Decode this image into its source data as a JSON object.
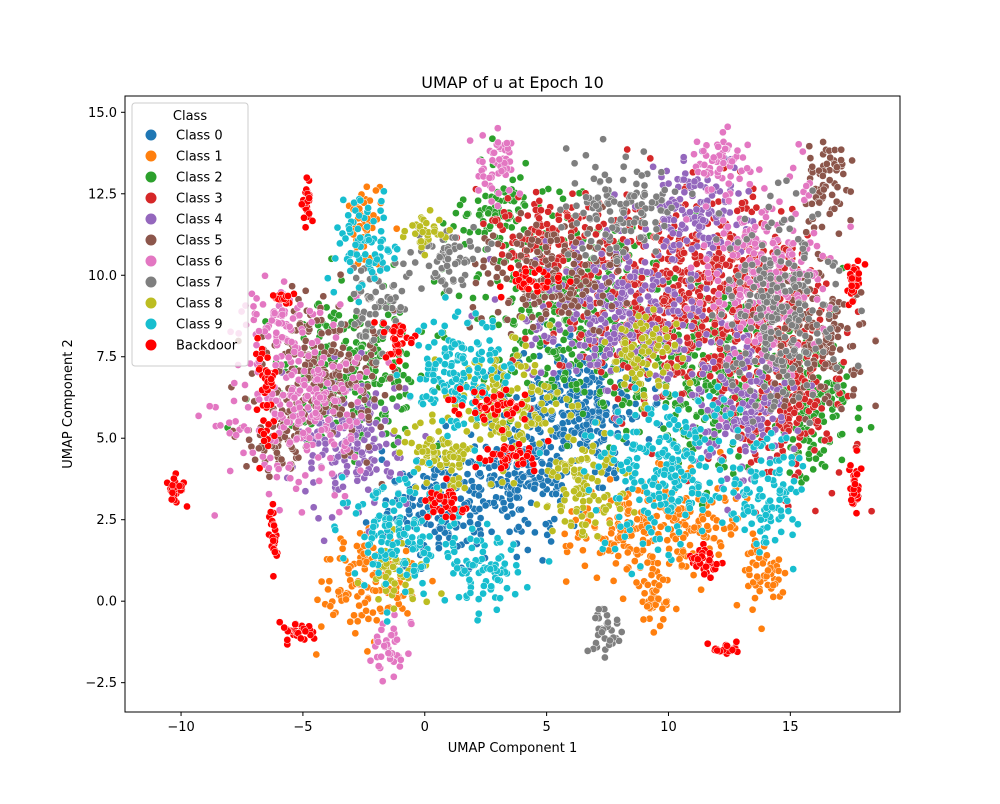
{
  "chart_data": {
    "type": "scatter",
    "title": "UMAP of u at Epoch 10",
    "xlabel": "UMAP Component 1",
    "ylabel": "UMAP Component 2",
    "xlim": [
      -12.3,
      19.5
    ],
    "ylim": [
      -3.4,
      15.5
    ],
    "xticks": [
      -10,
      -5,
      0,
      5,
      10,
      15
    ],
    "yticks": [
      -2.5,
      0.0,
      2.5,
      5.0,
      7.5,
      10.0,
      12.5,
      15.0
    ],
    "xtick_labels": [
      "−10",
      "−5",
      "0",
      "5",
      "10",
      "15"
    ],
    "ytick_labels": [
      "−2.5",
      "0.0",
      "2.5",
      "5.0",
      "7.5",
      "10.0",
      "12.5",
      "15.0"
    ],
    "grid": false,
    "legend": {
      "title": "Class",
      "position": "upper-left"
    },
    "series": [
      {
        "name": "Class 0",
        "color": "#1f77b4",
        "clusters": [
          [
            5,
            5.5,
            1.6,
            1.4
          ],
          [
            3.5,
            3.5,
            1.5,
            1.2
          ],
          [
            7,
            6,
            1.5,
            1.5
          ],
          [
            0.5,
            3,
            1.5,
            1.2
          ]
        ]
      },
      {
        "name": "Class 1",
        "color": "#ff7f0e",
        "clusters": [
          [
            8.5,
            2,
            1.5,
            1.0
          ],
          [
            11,
            2.5,
            1.4,
            1.0
          ],
          [
            -2.5,
            0.5,
            1.4,
            1.0
          ],
          [
            14,
            1,
            0.6,
            0.8
          ],
          [
            -2.5,
            11.5,
            0.5,
            0.8
          ],
          [
            9.5,
            0,
            0.4,
            0.6
          ]
        ]
      },
      {
        "name": "Class 2",
        "color": "#2ca02c",
        "clusters": [
          [
            6,
            9,
            2.5,
            2.0
          ],
          [
            12,
            7,
            2.5,
            2.0
          ],
          [
            -3,
            7,
            2.0,
            1.5
          ],
          [
            3,
            12,
            1.0,
            0.8
          ],
          [
            16,
            6,
            1.2,
            1.5
          ]
        ]
      },
      {
        "name": "Class 3",
        "color": "#d62728",
        "clusters": [
          [
            10,
            9,
            3.0,
            2.0
          ],
          [
            5,
            11,
            1.8,
            1.0
          ],
          [
            12.5,
            10,
            2.0,
            1.5
          ],
          [
            15,
            6.5,
            1.5,
            2.0
          ]
        ]
      },
      {
        "name": "Class 4",
        "color": "#9467bd",
        "clusters": [
          [
            8,
            9,
            2.5,
            1.5
          ],
          [
            -3,
            5,
            1.5,
            1.5
          ],
          [
            11,
            12,
            1.5,
            1.0
          ],
          [
            13,
            6,
            1.5,
            1.5
          ]
        ]
      },
      {
        "name": "Class 5",
        "color": "#8c564b",
        "clusters": [
          [
            -4,
            7,
            1.8,
            1.5
          ],
          [
            16,
            8,
            1.2,
            1.5
          ],
          [
            5,
            10,
            2.0,
            1.0
          ],
          [
            16.5,
            13,
            0.6,
            1.0
          ],
          [
            -6,
            5,
            0.8,
            0.8
          ]
        ]
      },
      {
        "name": "Class 6",
        "color": "#e377c2",
        "clusters": [
          [
            -5,
            6,
            2.0,
            1.5
          ],
          [
            14,
            10,
            1.5,
            2.0
          ],
          [
            3,
            13.5,
            0.6,
            0.8
          ],
          [
            12,
            13.5,
            0.8,
            0.6
          ],
          [
            -1.5,
            -1.5,
            0.4,
            0.7
          ],
          [
            -6,
            8.5,
            0.8,
            0.8
          ]
        ]
      },
      {
        "name": "Class 7",
        "color": "#7f7f7f",
        "clusters": [
          [
            1,
            10.5,
            1.0,
            0.7
          ],
          [
            14.5,
            9,
            1.5,
            2.0
          ],
          [
            8,
            12,
            1.5,
            1.0
          ],
          [
            7.5,
            -1,
            0.4,
            0.5
          ],
          [
            -2,
            9,
            0.8,
            0.8
          ]
        ]
      },
      {
        "name": "Class 8",
        "color": "#bcbd22",
        "clusters": [
          [
            3.5,
            6,
            1.5,
            1.2
          ],
          [
            6.5,
            3.5,
            1.2,
            1.0
          ],
          [
            9,
            7.5,
            1.0,
            0.8
          ],
          [
            0.5,
            4.5,
            1.0,
            0.8
          ],
          [
            -1,
            0.8,
            0.8,
            0.6
          ],
          [
            0,
            11.3,
            0.5,
            0.4
          ]
        ]
      },
      {
        "name": "Class 9",
        "color": "#17becf",
        "clusters": [
          [
            10,
            4,
            2.0,
            1.5
          ],
          [
            1.5,
            7,
            1.5,
            1.2
          ],
          [
            -1,
            2,
            1.5,
            1.2
          ],
          [
            -2.5,
            11,
            0.8,
            1.0
          ],
          [
            14,
            3,
            1.0,
            1.2
          ],
          [
            2.5,
            1,
            1.0,
            0.8
          ]
        ]
      },
      {
        "name": "Backdoor",
        "color": "#ff0000",
        "clusters": [
          [
            -10.2,
            3.4,
            0.25,
            0.3
          ],
          [
            -6.2,
            2,
            0.1,
            0.6
          ],
          [
            -5.2,
            -0.9,
            0.5,
            0.2
          ],
          [
            -4.8,
            12.2,
            0.15,
            0.5
          ],
          [
            -5.8,
            9.3,
            0.3,
            0.1
          ],
          [
            -6.5,
            6.5,
            0.3,
            1.2
          ],
          [
            2.5,
            6,
            1.3,
            0.3
          ],
          [
            3.5,
            4.5,
            0.8,
            0.4
          ],
          [
            1,
            3,
            0.6,
            0.3
          ],
          [
            12.5,
            -1.45,
            0.5,
            0.15
          ],
          [
            17.6,
            3.5,
            0.15,
            0.6
          ],
          [
            17.6,
            9.8,
            0.2,
            0.5
          ],
          [
            11.5,
            1.2,
            0.5,
            0.3
          ],
          [
            4.5,
            9.8,
            0.8,
            0.3
          ],
          [
            -1.1,
            8,
            0.5,
            0.4
          ]
        ]
      }
    ]
  }
}
